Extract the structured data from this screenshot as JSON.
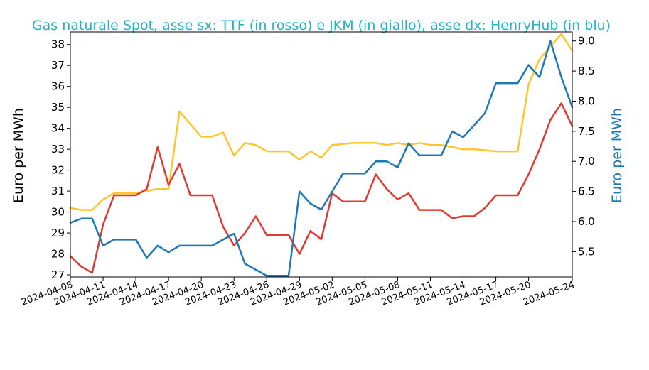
{
  "chart_data": {
    "type": "line",
    "title": "Gas naturale Spot, asse sx: TTF (in rosso) e JKM (in giallo), asse dx: HenryHub (in blu)",
    "ylabel_left": "Euro per MWh",
    "ylabel_right": "Euro per MWh",
    "ylim_left": [
      26.9,
      38.6
    ],
    "ylim_right": [
      5.08,
      9.15
    ],
    "yticks_left": [
      "27",
      "28",
      "29",
      "30",
      "31",
      "32",
      "33",
      "34",
      "35",
      "36",
      "37",
      "38"
    ],
    "yticks_right": [
      "5.5",
      "6.0",
      "6.5",
      "7.0",
      "7.5",
      "8.0",
      "8.5",
      "9.0"
    ],
    "xlim": [
      "2024-04-08",
      "2024-05-24"
    ],
    "xticks": [
      "2024-04-08",
      "2024-04-11",
      "2024-04-14",
      "2024-04-17",
      "2024-04-20",
      "2024-04-23",
      "2024-04-26",
      "2024-04-29",
      "2024-05-02",
      "2024-05-05",
      "2024-05-08",
      "2024-05-11",
      "2024-05-14",
      "2024-05-17",
      "2024-05-20",
      "2024-05-24"
    ],
    "grid": false,
    "series": [
      {
        "color": "#fcc62d",
        "axis": "left",
        "x": [
          "2024-04-08",
          "2024-04-09",
          "2024-04-10",
          "2024-04-11",
          "2024-04-12",
          "2024-04-14",
          "2024-04-15",
          "2024-04-16",
          "2024-04-17",
          "2024-04-18",
          "2024-04-20",
          "2024-04-21",
          "2024-04-22",
          "2024-04-23",
          "2024-04-24",
          "2024-04-25",
          "2024-04-26",
          "2024-04-27",
          "2024-04-28",
          "2024-04-29",
          "2024-04-30",
          "2024-05-01",
          "2024-05-02",
          "2024-05-04",
          "2024-05-05",
          "2024-05-06",
          "2024-05-07",
          "2024-05-08",
          "2024-05-09",
          "2024-05-10",
          "2024-05-11",
          "2024-05-12",
          "2024-05-14",
          "2024-05-15",
          "2024-05-17",
          "2024-05-18",
          "2024-05-19",
          "2024-05-20",
          "2024-05-21",
          "2024-05-22",
          "2024-05-23",
          "2024-05-24"
        ],
        "values": [
          30.2,
          30.1,
          30.1,
          30.6,
          30.9,
          30.9,
          31.0,
          31.1,
          31.1,
          34.8,
          33.6,
          33.6,
          33.8,
          32.7,
          33.3,
          33.2,
          32.9,
          32.9,
          32.9,
          32.5,
          32.9,
          32.6,
          33.2,
          33.3,
          33.3,
          33.3,
          33.2,
          33.3,
          33.2,
          33.3,
          33.2,
          33.2,
          33.0,
          33.0,
          32.9,
          32.9,
          32.9,
          36.1,
          37.3,
          37.9,
          38.5,
          37.7
        ]
      },
      {
        "color": "#de3a34",
        "axis": "left",
        "x": [
          "2024-04-08",
          "2024-04-09",
          "2024-04-10",
          "2024-04-11",
          "2024-04-12",
          "2024-04-14",
          "2024-04-15",
          "2024-04-16",
          "2024-04-17",
          "2024-04-18",
          "2024-04-19",
          "2024-04-20",
          "2024-04-21",
          "2024-04-22",
          "2024-04-23",
          "2024-04-24",
          "2024-04-25",
          "2024-04-26",
          "2024-04-27",
          "2024-04-28",
          "2024-04-29",
          "2024-04-30",
          "2024-05-01",
          "2024-05-02",
          "2024-05-03",
          "2024-05-04",
          "2024-05-05",
          "2024-05-06",
          "2024-05-07",
          "2024-05-08",
          "2024-05-09",
          "2024-05-10",
          "2024-05-11",
          "2024-05-12",
          "2024-05-13",
          "2024-05-14",
          "2024-05-15",
          "2024-05-16",
          "2024-05-17",
          "2024-05-18",
          "2024-05-19",
          "2024-05-20",
          "2024-05-21",
          "2024-05-22",
          "2024-05-23",
          "2024-05-24"
        ],
        "values": [
          27.9,
          27.4,
          27.1,
          29.4,
          30.8,
          30.8,
          31.1,
          33.1,
          31.3,
          32.3,
          30.8,
          30.8,
          30.8,
          29.3,
          28.4,
          29.0,
          29.8,
          28.9,
          28.9,
          28.9,
          28.0,
          29.1,
          28.7,
          30.9,
          30.5,
          30.5,
          30.5,
          31.8,
          31.1,
          30.6,
          30.9,
          30.1,
          30.1,
          30.1,
          29.7,
          29.8,
          29.8,
          30.2,
          30.8,
          30.8,
          30.8,
          31.8,
          33.0,
          34.4,
          35.2,
          34.1
        ]
      },
      {
        "color": "#1f77b4",
        "axis": "right",
        "x": [
          "2024-04-08",
          "2024-04-09",
          "2024-04-10",
          "2024-04-11",
          "2024-04-12",
          "2024-04-14",
          "2024-04-15",
          "2024-04-16",
          "2024-04-17",
          "2024-04-18",
          "2024-04-19",
          "2024-04-20",
          "2024-04-21",
          "2024-04-22",
          "2024-04-23",
          "2024-04-24",
          "2024-04-25",
          "2024-04-26",
          "2024-04-27",
          "2024-04-28",
          "2024-04-29",
          "2024-04-30",
          "2024-05-01",
          "2024-05-02",
          "2024-05-03",
          "2024-05-04",
          "2024-05-05",
          "2024-05-06",
          "2024-05-07",
          "2024-05-08",
          "2024-05-09",
          "2024-05-10",
          "2024-05-11",
          "2024-05-12",
          "2024-05-13",
          "2024-05-14",
          "2024-05-15",
          "2024-05-16",
          "2024-05-17",
          "2024-05-18",
          "2024-05-19",
          "2024-05-20",
          "2024-05-21",
          "2024-05-22",
          "2024-05-23",
          "2024-05-24"
        ],
        "values": [
          5.98,
          6.05,
          6.05,
          5.6,
          5.7,
          5.7,
          5.4,
          5.6,
          5.49,
          5.6,
          5.6,
          5.6,
          5.6,
          5.7,
          5.8,
          5.3,
          5.2,
          5.1,
          5.1,
          5.1,
          6.5,
          6.3,
          6.2,
          6.5,
          6.8,
          6.8,
          6.8,
          7.0,
          7.0,
          6.9,
          7.3,
          7.1,
          7.1,
          7.1,
          7.5,
          7.4,
          7.6,
          7.8,
          8.3,
          8.3,
          8.3,
          8.6,
          8.4,
          9.0,
          8.4,
          7.9
        ]
      }
    ]
  }
}
